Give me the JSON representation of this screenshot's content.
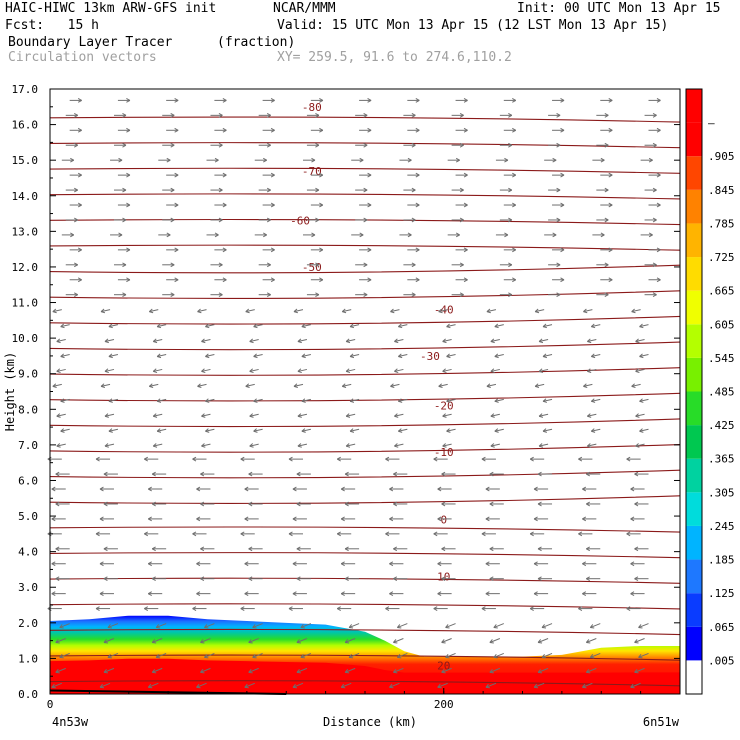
{
  "header": {
    "model": "HAIC-HIWC 13km ARW-GFS init",
    "org": "NCAR/MMM",
    "init": "Init: 00 UTC Mon 13 Apr 15",
    "fcst": "Fcst:   15 h",
    "valid": "Valid: 15 UTC Mon 13 Apr 15 (12 LST Mon 13 Apr 15)",
    "field1": "Boundary Layer Tracer",
    "field1_units": "(fraction)",
    "field2": "Circulation vectors",
    "xy": "XY= 259.5, 91.6 to 274.6,110.2"
  },
  "chart_data": {
    "type": "contour-cross-section",
    "xlabel": "Distance (km)",
    "ylabel": "Height (km)",
    "x_left_label": "4n53w",
    "x_right_label": "6n51w",
    "x_range": [
      0,
      320
    ],
    "x_ticks": [
      0,
      200
    ],
    "y_range": [
      0,
      17
    ],
    "y_ticks": [
      "0.0",
      "1.0",
      "2.0",
      "3.0",
      "4.0",
      "5.0",
      "6.0",
      "7.0",
      "8.0",
      "9.0",
      "10.0",
      "11.0",
      "12.0",
      "13.0",
      "14.0",
      "15.0",
      "16.0",
      "17.0"
    ],
    "colorbar": {
      "labels": [
        ".005",
        ".065",
        ".125",
        ".185",
        ".245",
        ".305",
        ".365",
        ".425",
        ".485",
        ".545",
        ".605",
        ".665",
        ".725",
        ".785",
        ".845",
        ".905",
        "–"
      ],
      "colors": [
        "#ffffff",
        "#0000ff",
        "#0a3cff",
        "#1e78ff",
        "#00b4ff",
        "#00dcdc",
        "#00d2a0",
        "#00c850",
        "#28dc28",
        "#78f000",
        "#b4ff00",
        "#f0ff00",
        "#ffdc00",
        "#ffb400",
        "#ff8200",
        "#ff4600",
        "#ff0000",
        "#ff0000"
      ]
    },
    "tracer_top": {
      "x_km": [
        0,
        20,
        40,
        60,
        80,
        100,
        120,
        140,
        160,
        170,
        180,
        190,
        200,
        220,
        240,
        260,
        280,
        300,
        320
      ],
      "top_km": [
        2.05,
        2.1,
        2.2,
        2.2,
        2.1,
        2.05,
        2.0,
        1.95,
        1.75,
        1.5,
        1.2,
        1.05,
        1.05,
        1.05,
        1.05,
        1.1,
        1.3,
        1.35,
        1.35
      ]
    },
    "temperature_isotherms": [
      {
        "label": "-80",
        "x_km": 133,
        "y_km": 16.5
      },
      {
        "label": "-70",
        "x_km": 133,
        "y_km": 14.7
      },
      {
        "label": "-60",
        "x_km": 127,
        "y_km": 13.3
      },
      {
        "label": "-50",
        "x_km": 133,
        "y_km": 12.0
      },
      {
        "label": "-40",
        "x_km": 200,
        "y_km": 10.8
      },
      {
        "label": "-30",
        "x_km": 193,
        "y_km": 9.5
      },
      {
        "label": "-20",
        "x_km": 200,
        "y_km": 8.1
      },
      {
        "label": "-10",
        "x_km": 200,
        "y_km": 6.8
      },
      {
        "label": "0",
        "x_km": 200,
        "y_km": 4.9
      },
      {
        "label": "10",
        "x_km": 200,
        "y_km": 3.3
      },
      {
        "label": "20",
        "x_km": 200,
        "y_km": 0.8
      }
    ]
  }
}
